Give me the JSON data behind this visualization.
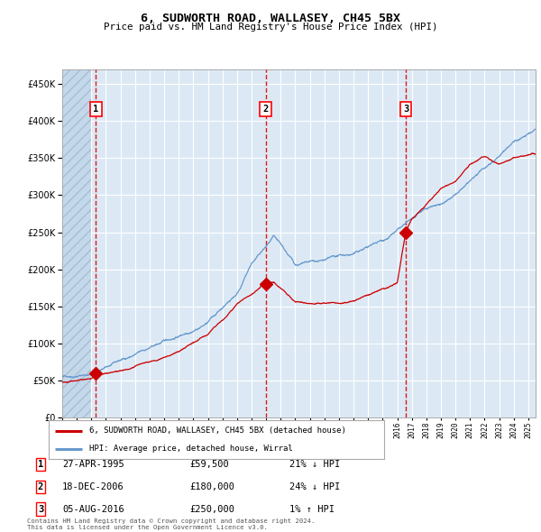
{
  "title": "6, SUDWORTH ROAD, WALLASEY, CH45 5BX",
  "subtitle": "Price paid vs. HM Land Registry's House Price Index (HPI)",
  "ylim": [
    0,
    470000
  ],
  "yticks": [
    0,
    50000,
    100000,
    150000,
    200000,
    250000,
    300000,
    350000,
    400000,
    450000
  ],
  "xlim_start": 1993.0,
  "xlim_end": 2025.5,
  "bg_color": "#dce9f5",
  "grid_color": "#ffffff",
  "red_line_color": "#cc0000",
  "blue_line_color": "#6699cc",
  "sale1_date": 1995.32,
  "sale1_price": 59500,
  "sale2_date": 2006.96,
  "sale2_price": 180000,
  "sale3_date": 2016.59,
  "sale3_price": 250000,
  "legend_label_red": "6, SUDWORTH ROAD, WALLASEY, CH45 5BX (detached house)",
  "legend_label_blue": "HPI: Average price, detached house, Wirral",
  "table_rows": [
    [
      "1",
      "27-APR-1995",
      "£59,500",
      "21% ↓ HPI"
    ],
    [
      "2",
      "18-DEC-2006",
      "£180,000",
      "24% ↓ HPI"
    ],
    [
      "3",
      "05-AUG-2016",
      "£250,000",
      "1% ↑ HPI"
    ]
  ],
  "footnote": "Contains HM Land Registry data © Crown copyright and database right 2024.\nThis data is licensed under the Open Government Licence v3.0.",
  "outer_bg": "#ffffff",
  "blue_key_years": [
    1993,
    1995,
    1997,
    1999,
    2001,
    2003,
    2005,
    2006,
    2007.5,
    2009,
    2011,
    2013,
    2015,
    2016,
    2018,
    2020,
    2022,
    2024,
    2025.5
  ],
  "blue_key_vals": [
    55000,
    62000,
    78000,
    93000,
    108000,
    130000,
    170000,
    210000,
    242000,
    200000,
    202000,
    207000,
    225000,
    238000,
    260000,
    278000,
    310000,
    348000,
    362000
  ],
  "red_key_years": [
    1993,
    1995.0,
    1995.32,
    1997,
    1999,
    2001,
    2003,
    2005,
    2006.5,
    2006.96,
    2007.5,
    2009,
    2011,
    2013,
    2015,
    2016.0,
    2016.59,
    2017,
    2018,
    2019,
    2020,
    2021,
    2022,
    2023,
    2024,
    2025.5
  ],
  "red_key_vals": [
    48000,
    55000,
    59500,
    65000,
    76000,
    90000,
    113000,
    150000,
    172000,
    180000,
    183000,
    155000,
    155000,
    160000,
    174000,
    182000,
    250000,
    268000,
    288000,
    308000,
    318000,
    338000,
    352000,
    344000,
    354000,
    358000
  ]
}
